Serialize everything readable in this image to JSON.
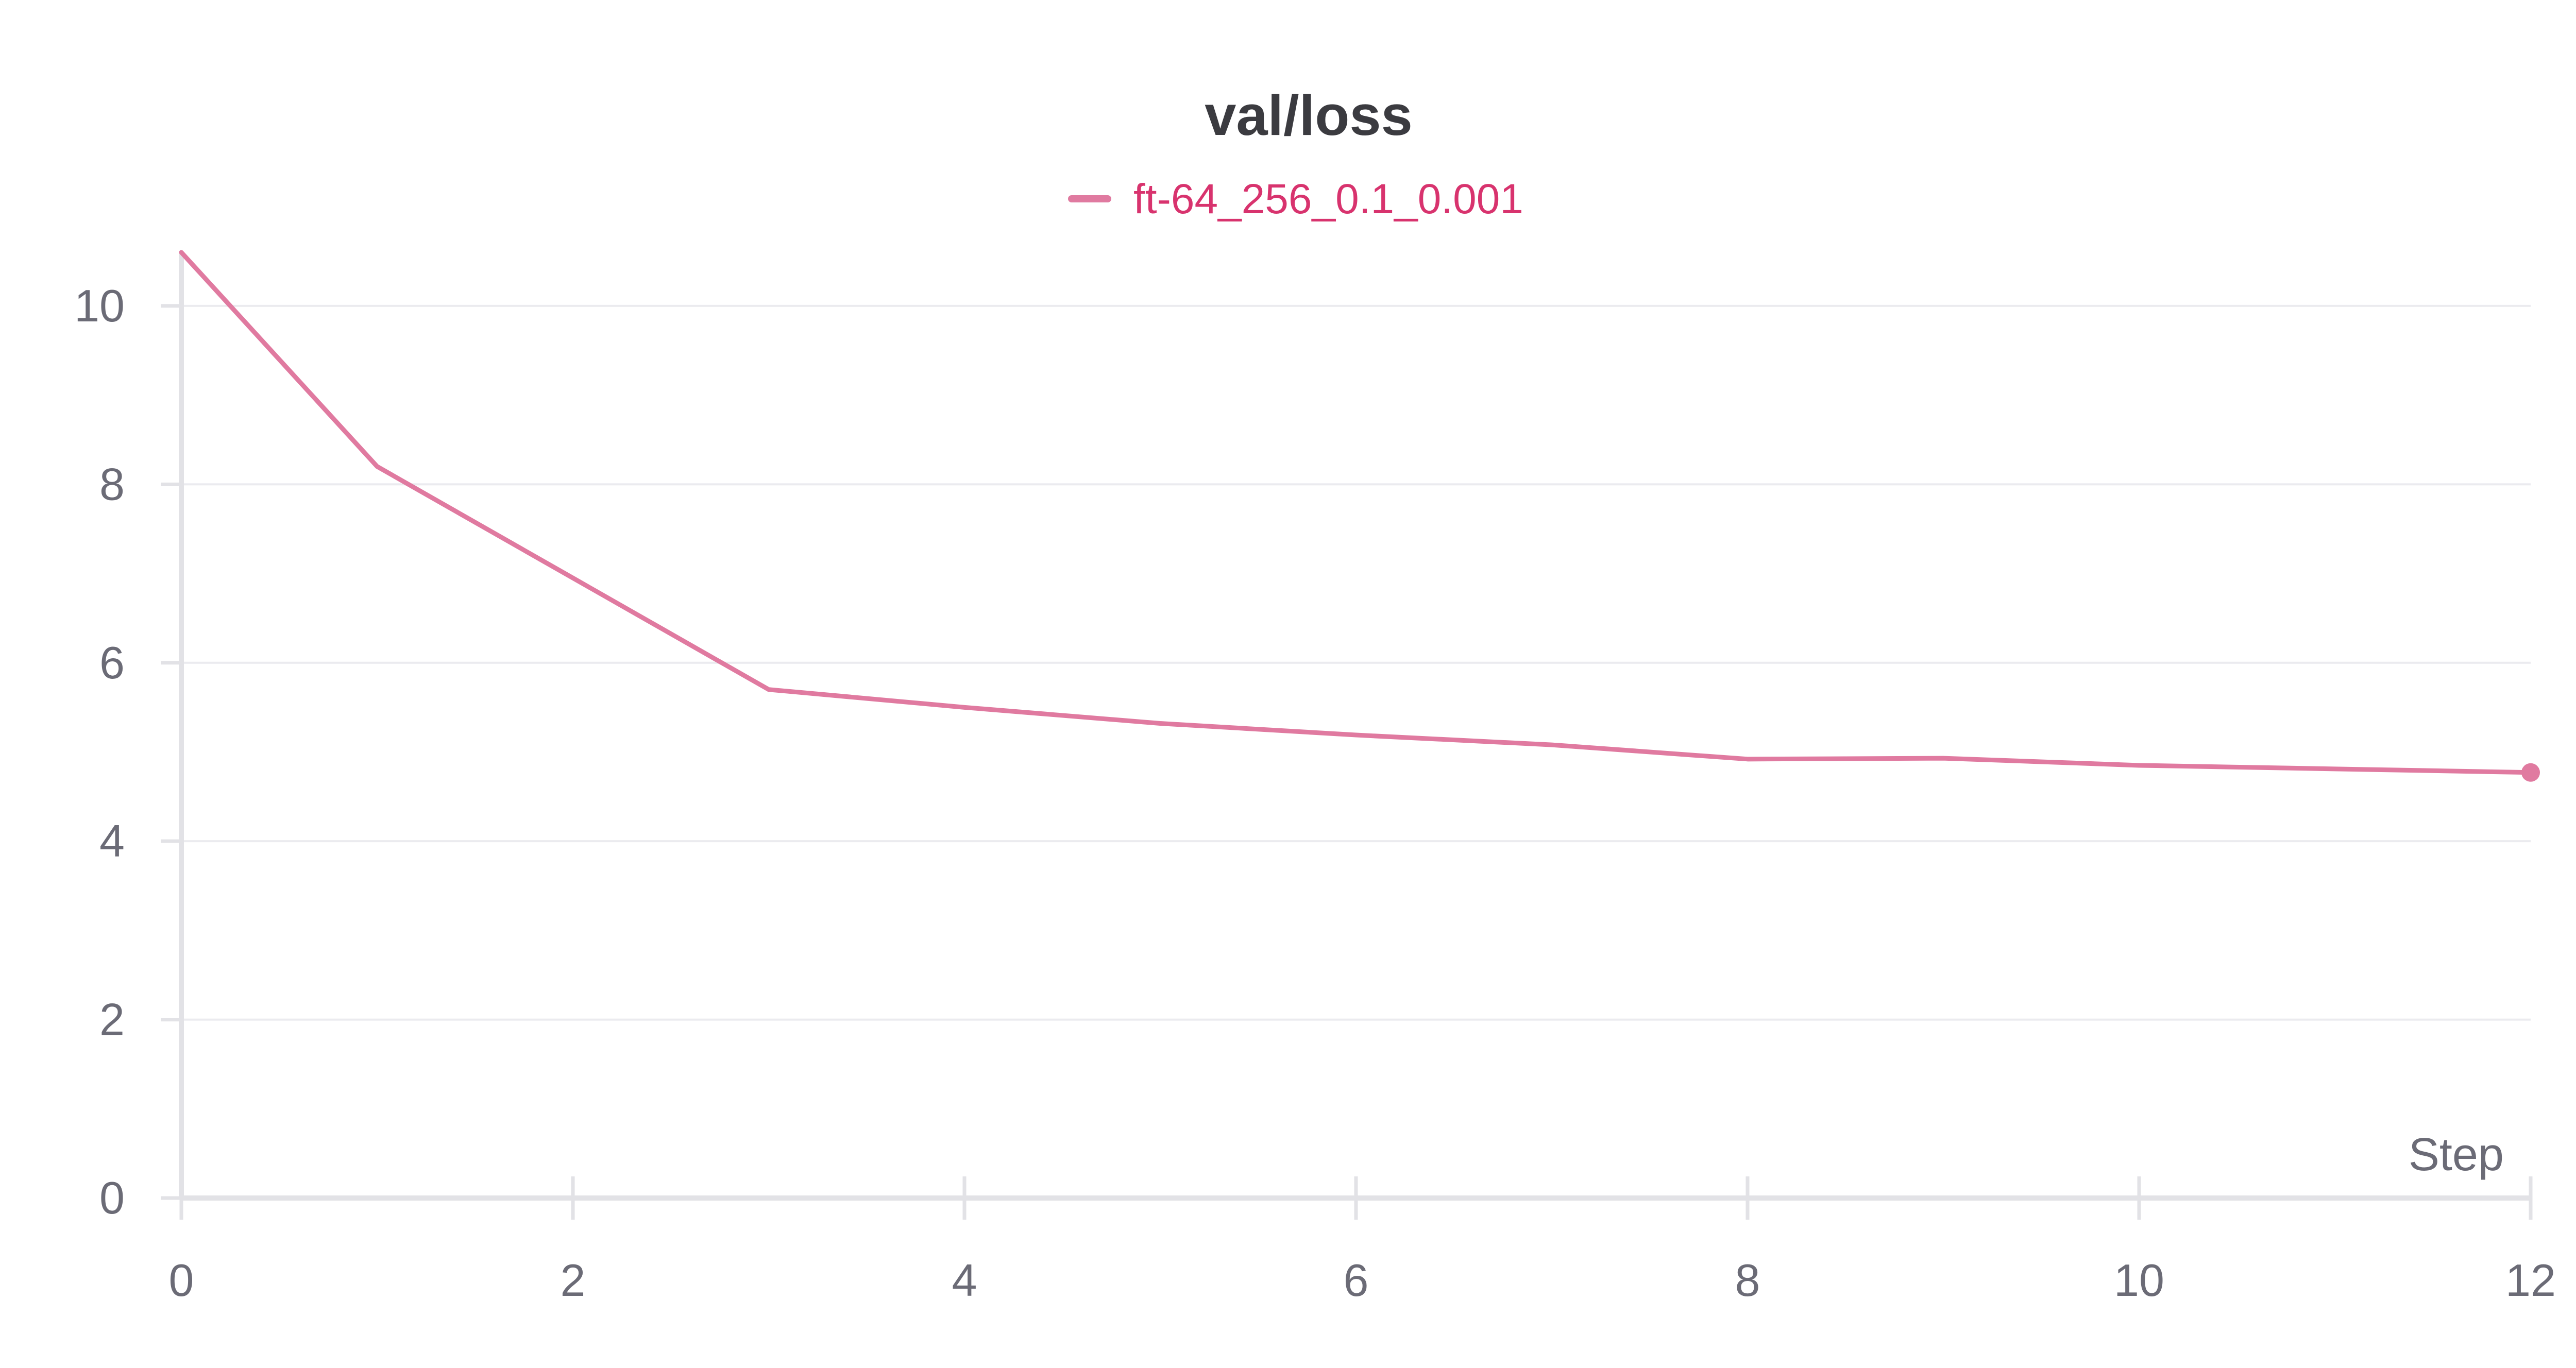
{
  "chart_data": {
    "type": "line",
    "title": "val/loss",
    "xlabel": "Step",
    "ylabel": "",
    "xlim": [
      0,
      12
    ],
    "ylim": [
      0,
      10.6
    ],
    "xticks": [
      0,
      2,
      4,
      6,
      8,
      10,
      12
    ],
    "yticks": [
      0,
      2,
      4,
      6,
      8,
      10
    ],
    "grid": true,
    "legend_position": "top-center",
    "series": [
      {
        "name": "ft-64_256_0.1_0.001",
        "color": "#e07aa0",
        "x": [
          0,
          1,
          2,
          3,
          4,
          5,
          6,
          7,
          8,
          9,
          10,
          11,
          12
        ],
        "y": [
          10.6,
          8.2,
          6.95,
          5.7,
          5.5,
          5.32,
          5.19,
          5.08,
          4.92,
          4.93,
          4.85,
          4.81,
          4.77
        ]
      }
    ]
  }
}
